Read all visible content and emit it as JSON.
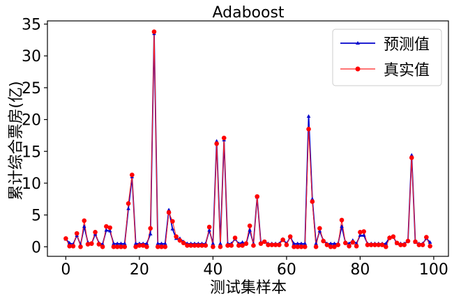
{
  "chart_data": {
    "type": "line",
    "title": "Adaboost",
    "xlabel": "测试集样本",
    "ylabel": "累计综合票房(亿)",
    "xlim": [
      -5,
      104
    ],
    "ylim": [
      -1.5,
      35.5
    ],
    "xticks": [
      0,
      20,
      40,
      60,
      80,
      100
    ],
    "yticks": [
      0,
      5,
      10,
      15,
      20,
      25,
      30,
      35
    ],
    "grid": false,
    "legend": "top-right",
    "series": [
      {
        "name": "预测值",
        "color": "#0000cc",
        "marker": "triangle",
        "values": [
          1.2,
          0.6,
          0.4,
          1.8,
          0.3,
          3.2,
          0.7,
          0.5,
          2.0,
          0.6,
          0.4,
          2.6,
          2.5,
          0.5,
          0.5,
          0.5,
          0.5,
          6.0,
          11.0,
          0.5,
          0.5,
          0.5,
          0.5,
          2.0,
          33.5,
          0.5,
          0.5,
          0.5,
          5.8,
          2.8,
          1.3,
          1.3,
          0.8,
          0.5,
          0.5,
          0.5,
          0.5,
          0.5,
          0.5,
          2.6,
          0.5,
          16.6,
          0.5,
          16.8,
          0.5,
          0.5,
          1.2,
          0.5,
          0.7,
          0.5,
          2.6,
          0.5,
          7.8,
          0.7,
          0.8,
          0.5,
          0.5,
          0.5,
          0.5,
          1.2,
          0.5,
          1.5,
          0.5,
          0.5,
          0.5,
          0.5,
          20.5,
          7.5,
          0.5,
          2.5,
          1.0,
          0.5,
          0.5,
          0.5,
          0.5,
          3.2,
          0.7,
          0.5,
          1.0,
          0.5,
          1.8,
          1.8,
          0.5,
          0.5,
          0.5,
          0.5,
          0.5,
          0.5,
          1.5,
          1.6,
          0.5,
          0.5,
          0.5,
          0.9,
          14.4,
          0.7,
          0.5,
          0.5,
          1.3,
          0.7
        ]
      },
      {
        "name": "真实值",
        "color": "#ff2020",
        "marker": "circle",
        "values": [
          1.3,
          0.1,
          0.1,
          2.1,
          0.0,
          4.1,
          0.4,
          0.5,
          2.3,
          0.4,
          0.0,
          3.2,
          3.0,
          0.0,
          0.0,
          0.0,
          0.0,
          6.8,
          11.3,
          0.0,
          0.2,
          0.2,
          0.0,
          2.9,
          33.8,
          0.0,
          0.0,
          0.0,
          5.4,
          4.0,
          1.6,
          1.0,
          0.6,
          0.2,
          0.2,
          0.2,
          0.2,
          0.2,
          0.2,
          3.1,
          0.0,
          16.2,
          0.0,
          17.1,
          0.2,
          0.2,
          1.4,
          0.2,
          0.2,
          0.5,
          3.3,
          0.2,
          7.9,
          0.5,
          0.8,
          0.3,
          0.3,
          0.3,
          0.3,
          1.1,
          0.3,
          1.6,
          0.0,
          0.0,
          0.0,
          0.0,
          18.5,
          7.1,
          0.0,
          2.9,
          0.9,
          0.3,
          0.0,
          0.0,
          0.3,
          4.2,
          0.6,
          0.1,
          0.7,
          0.1,
          2.3,
          2.4,
          0.3,
          0.3,
          0.3,
          0.3,
          0.3,
          0.0,
          1.4,
          1.6,
          0.6,
          0.3,
          0.3,
          0.9,
          14.0,
          0.8,
          0.3,
          0.3,
          1.5,
          0.1
        ]
      }
    ]
  }
}
